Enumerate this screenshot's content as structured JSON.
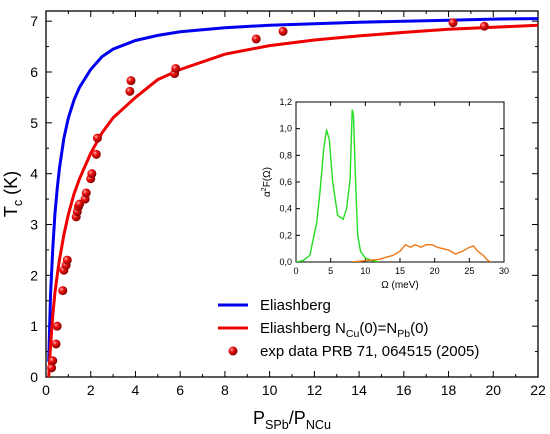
{
  "chart_data": [
    {
      "type": "line",
      "xlabel": {
        "main": "P",
        "sub1": "SPb",
        "sep": "/P",
        "sub2": "NCu"
      },
      "ylabel": {
        "main": "T",
        "sub": "c",
        "unit": " (K)"
      },
      "xlim": [
        0,
        22
      ],
      "ylim": [
        0,
        7.2
      ],
      "xticks": [
        0,
        2,
        4,
        6,
        8,
        10,
        12,
        14,
        16,
        18,
        20,
        22
      ],
      "yticks": [
        0,
        1,
        2,
        3,
        4,
        5,
        6,
        7
      ],
      "legend_position": "lower-right",
      "series": [
        {
          "name": "Eliashberg",
          "kind": "line",
          "color": "#0000ee",
          "x": [
            0.12,
            0.2,
            0.3,
            0.4,
            0.5,
            0.6,
            0.8,
            1.0,
            1.25,
            1.5,
            2.0,
            2.5,
            3.0,
            4.0,
            5.0,
            6.0,
            8.0,
            10.0,
            12.0,
            14.0,
            16.0,
            18.0,
            20.0,
            22.0
          ],
          "y": [
            0.3,
            1.6,
            2.5,
            3.2,
            3.7,
            4.1,
            4.7,
            5.1,
            5.45,
            5.7,
            6.05,
            6.3,
            6.45,
            6.62,
            6.72,
            6.79,
            6.87,
            6.92,
            6.95,
            6.98,
            7.0,
            7.02,
            7.04,
            7.05
          ]
        },
        {
          "name": {
            "main": "Eliashberg N",
            "sub1": "Cu",
            "mid": "(0)=N",
            "sub2": "Pb",
            "end": "(0)"
          },
          "kind": "line",
          "color": "#ee0000",
          "x": [
            0.12,
            0.2,
            0.3,
            0.4,
            0.5,
            0.6,
            0.8,
            1.0,
            1.25,
            1.5,
            2.0,
            2.5,
            3.0,
            4.0,
            5.0,
            6.0,
            8.0,
            10.0,
            12.0,
            14.0,
            16.0,
            18.0,
            20.0,
            22.0
          ],
          "y": [
            0.0,
            0.6,
            1.2,
            1.65,
            2.0,
            2.3,
            2.8,
            3.2,
            3.6,
            3.9,
            4.4,
            4.8,
            5.1,
            5.5,
            5.85,
            6.05,
            6.35,
            6.52,
            6.63,
            6.71,
            6.78,
            6.84,
            6.88,
            6.92
          ]
        },
        {
          "name": "exp data PRB 71, 064515 (2005)",
          "kind": "scatter",
          "color": "#ee1111",
          "x": [
            0.25,
            0.3,
            0.45,
            0.5,
            0.75,
            0.8,
            0.9,
            0.95,
            1.35,
            1.4,
            1.45,
            1.5,
            1.75,
            1.8,
            2.0,
            2.05,
            2.25,
            2.3,
            3.75,
            3.8,
            5.75,
            5.8,
            9.4,
            10.6,
            18.2,
            19.6
          ],
          "y": [
            0.18,
            0.32,
            0.65,
            1.0,
            1.7,
            2.1,
            2.2,
            2.3,
            3.15,
            3.25,
            3.35,
            3.4,
            3.5,
            3.62,
            3.9,
            4.0,
            4.38,
            4.7,
            5.62,
            5.83,
            5.97,
            6.07,
            6.65,
            6.8,
            6.97,
            6.9
          ]
        }
      ]
    },
    {
      "type": "line",
      "role": "inset",
      "xlabel": {
        "main": "Ω  (meV)"
      },
      "ylabel": {
        "main": "α",
        "sup": "2",
        "rest": "F(Ω)"
      },
      "xlim": [
        0,
        30
      ],
      "ylim": [
        0,
        1.2
      ],
      "xticks": [
        0,
        5,
        10,
        15,
        20,
        25,
        30
      ],
      "yticks": [
        0.0,
        0.2,
        0.4,
        0.6,
        0.8,
        1.0,
        1.2
      ],
      "ytick_labels": [
        "0,0",
        "0,2",
        "0,4",
        "0,6",
        "0,8",
        "1,0",
        "1,2"
      ],
      "series": [
        {
          "color": "#22dd22",
          "x": [
            0,
            1,
            2,
            3,
            3.5,
            4,
            4.4,
            4.8,
            5.3,
            6,
            6.8,
            7.3,
            7.8,
            8.1,
            8.3,
            8.6,
            8.9,
            9.3,
            10,
            11,
            12
          ],
          "y": [
            0,
            0.01,
            0.05,
            0.3,
            0.55,
            0.85,
            0.99,
            0.92,
            0.6,
            0.35,
            0.32,
            0.4,
            0.62,
            1.14,
            1.1,
            0.6,
            0.2,
            0.08,
            0.03,
            0.01,
            0
          ]
        },
        {
          "color": "#ee7711",
          "x": [
            8,
            10,
            12,
            14,
            15,
            15.8,
            16.5,
            17.2,
            18,
            18.8,
            19.6,
            20.4,
            21.2,
            22,
            23,
            24,
            25,
            25.6,
            26.2,
            27,
            27.5,
            28
          ],
          "y": [
            0,
            0.01,
            0.02,
            0.05,
            0.08,
            0.13,
            0.11,
            0.13,
            0.11,
            0.13,
            0.13,
            0.11,
            0.1,
            0.09,
            0.06,
            0.08,
            0.11,
            0.12,
            0.08,
            0.05,
            0.02,
            0
          ]
        }
      ]
    }
  ]
}
